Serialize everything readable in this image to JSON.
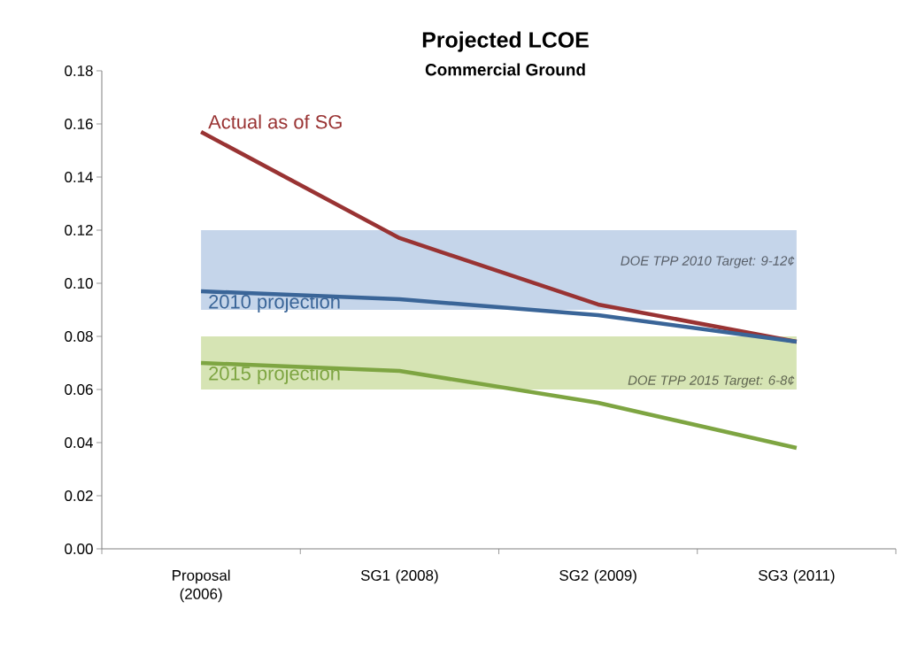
{
  "chart_data": {
    "type": "line",
    "title": "Projected LCOE",
    "subtitle": "Commercial Ground",
    "categories": [
      "Proposal (2006)",
      "SG1 (2008)",
      "SG2 (2009)",
      "SG3 (2011)"
    ],
    "series": [
      {
        "name": "Actual as of SG",
        "color": "#993333",
        "values": [
          0.157,
          0.117,
          0.092,
          0.078
        ]
      },
      {
        "name": "2010 projection",
        "color": "#3a6598",
        "values": [
          0.097,
          0.094,
          0.088,
          0.078
        ]
      },
      {
        "name": "2015 projection",
        "color": "#7ea542",
        "values": [
          0.07,
          0.067,
          0.055,
          0.038
        ]
      }
    ],
    "bands": [
      {
        "axis": "y",
        "from": 0.09,
        "to": 0.12,
        "label": "DOE TPP 2010 Target: 9-12¢",
        "color": "#c5d5ea"
      },
      {
        "axis": "y",
        "from": 0.06,
        "to": 0.08,
        "label": "DOE TPP 2015 Target: 6-8¢",
        "color": "#d6e4b4"
      }
    ],
    "ylim": [
      0,
      0.18
    ],
    "yticks": [
      {
        "value": 0,
        "label": "0.00"
      },
      {
        "value": 0.02,
        "label": "0.02"
      },
      {
        "value": 0.04,
        "label": "0.04"
      },
      {
        "value": 0.06,
        "label": "0.06"
      },
      {
        "value": 0.08,
        "label": "0.08"
      },
      {
        "value": 0.1,
        "label": "0.10"
      },
      {
        "value": 0.12,
        "label": "0.12"
      },
      {
        "value": 0.14,
        "label": "0.14"
      },
      {
        "value": 0.16,
        "label": "0.16"
      },
      {
        "value": 0.18,
        "label": "0.18"
      }
    ],
    "grid": false,
    "marker": "none",
    "line_style": "solid"
  }
}
